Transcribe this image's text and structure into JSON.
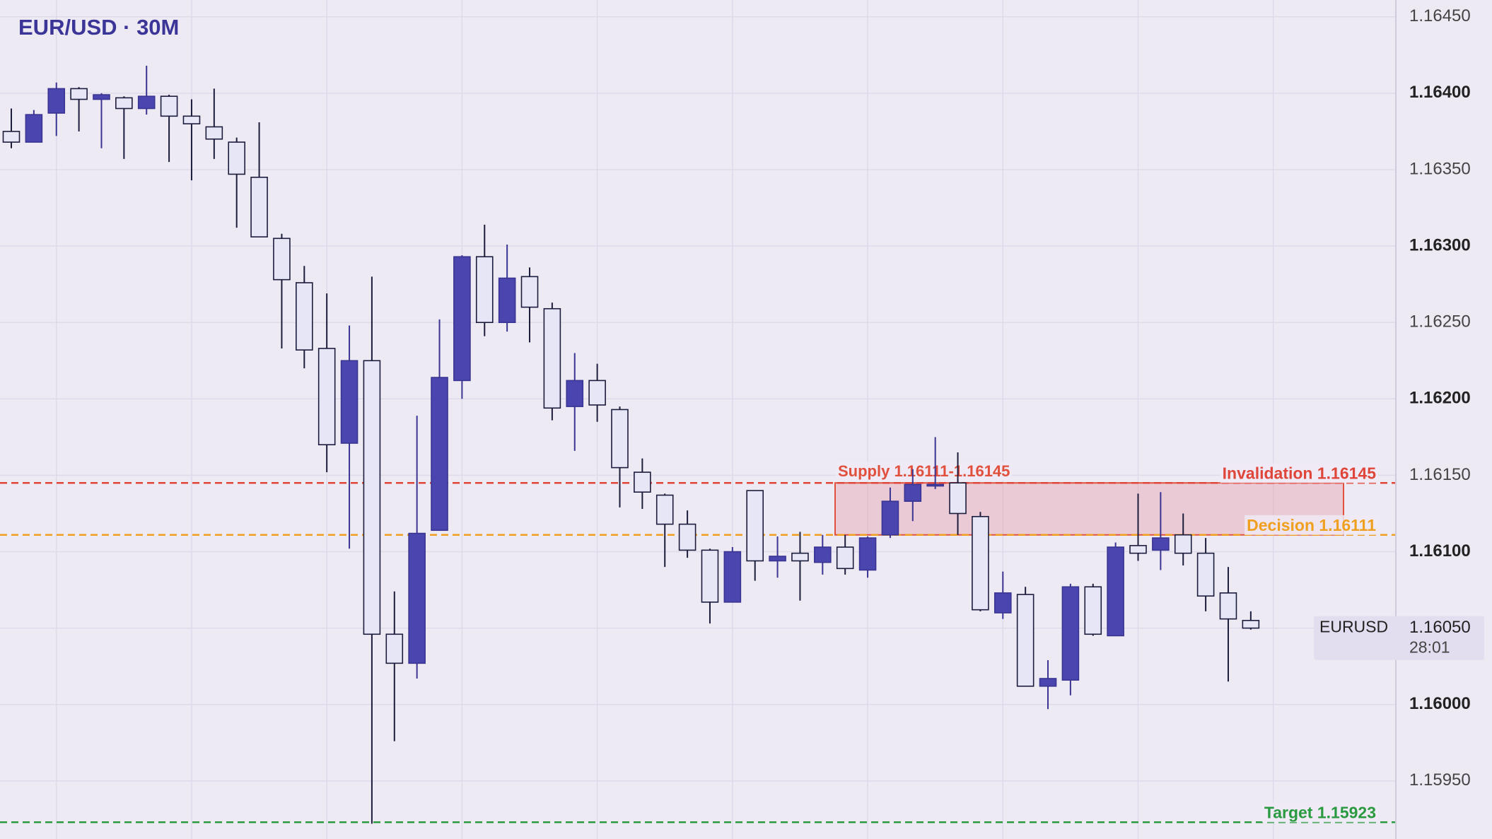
{
  "chart_data": {
    "type": "candlestick",
    "title": "EUR/USD · 30M",
    "series": [
      {
        "name": "EURUSD",
        "up_color": "#4b45b0",
        "down_color": "#e6e6f6",
        "open": [
          1.16375,
          1.16368,
          1.16387,
          1.16403,
          1.16396,
          1.16397,
          1.1639,
          1.16398,
          1.16385,
          1.16378,
          1.16368,
          1.16345,
          1.16305,
          1.16276,
          1.16233,
          1.16171,
          1.16225,
          1.16046,
          1.16027,
          1.16114,
          1.16212,
          1.16293,
          1.1625,
          1.1628,
          1.16259,
          1.16195,
          1.16212,
          1.16193,
          1.16152,
          1.16137,
          1.16118,
          1.16101,
          1.16067,
          1.1614,
          1.16094,
          1.16099,
          1.16093,
          1.16103,
          1.16088,
          1.16111,
          1.16133,
          1.16143,
          1.16145,
          1.16123,
          1.1606,
          1.16072,
          1.16012,
          1.16016,
          1.16077,
          1.16045,
          1.16104,
          1.16101,
          1.16111,
          1.16099,
          1.16073,
          1.16055
        ],
        "high": [
          1.1639,
          1.16389,
          1.16407,
          1.16404,
          1.164,
          1.16398,
          1.16418,
          1.16399,
          1.16396,
          1.16403,
          1.16371,
          1.16381,
          1.16308,
          1.16287,
          1.16269,
          1.16248,
          1.1628,
          1.16074,
          1.16189,
          1.16252,
          1.16294,
          1.16314,
          1.16301,
          1.16286,
          1.16263,
          1.1623,
          1.16223,
          1.16195,
          1.16161,
          1.16138,
          1.16127,
          1.16102,
          1.16103,
          1.1614,
          1.1611,
          1.16113,
          1.16111,
          1.16111,
          1.1611,
          1.16142,
          1.16154,
          1.16175,
          1.16165,
          1.16126,
          1.16087,
          1.16077,
          1.16029,
          1.16079,
          1.16079,
          1.16106,
          1.16138,
          1.16139,
          1.16125,
          1.16109,
          1.1609,
          1.16061
        ],
        "low": [
          1.16364,
          1.16368,
          1.16372,
          1.16375,
          1.16364,
          1.16357,
          1.16386,
          1.16355,
          1.16343,
          1.16357,
          1.16312,
          1.16306,
          1.16233,
          1.1622,
          1.16152,
          1.16102,
          1.15922,
          1.15976,
          1.16017,
          1.16114,
          1.162,
          1.16241,
          1.16244,
          1.16237,
          1.16186,
          1.16166,
          1.16185,
          1.16129,
          1.16128,
          1.1609,
          1.16096,
          1.16053,
          1.16067,
          1.16081,
          1.16083,
          1.16068,
          1.16085,
          1.16085,
          1.16083,
          1.16109,
          1.1612,
          1.16141,
          1.16111,
          1.16061,
          1.16056,
          1.16012,
          1.15997,
          1.16006,
          1.16045,
          1.16045,
          1.16094,
          1.16088,
          1.16091,
          1.16061,
          1.16015,
          1.16049
        ],
        "close": [
          1.16368,
          1.16386,
          1.16403,
          1.16396,
          1.16399,
          1.1639,
          1.16398,
          1.16385,
          1.1638,
          1.1637,
          1.16347,
          1.16306,
          1.16278,
          1.16232,
          1.1617,
          1.16225,
          1.16046,
          1.16027,
          1.16112,
          1.16214,
          1.16293,
          1.1625,
          1.16279,
          1.1626,
          1.16194,
          1.16212,
          1.16196,
          1.16155,
          1.16139,
          1.16118,
          1.16101,
          1.16067,
          1.161,
          1.16094,
          1.16097,
          1.16094,
          1.16103,
          1.16089,
          1.16109,
          1.16133,
          1.16144,
          1.16144,
          1.16125,
          1.16062,
          1.16073,
          1.16012,
          1.16017,
          1.16077,
          1.16046,
          1.16103,
          1.16099,
          1.16109,
          1.16099,
          1.16071,
          1.16056,
          1.1605
        ]
      }
    ],
    "ylim": [
      1.15912,
      1.16461
    ],
    "yticks": [
      {
        "value": 1.1595,
        "label": "1.15950"
      },
      {
        "value": 1.16,
        "label": "1.16000"
      },
      {
        "value": 1.1605,
        "label": "1.16050"
      },
      {
        "value": 1.161,
        "label": "1.16100"
      },
      {
        "value": 1.1615,
        "label": "1.16150"
      },
      {
        "value": 1.162,
        "label": "1.16200"
      },
      {
        "value": 1.1625,
        "label": "1.16250"
      },
      {
        "value": 1.163,
        "label": "1.16300"
      },
      {
        "value": 1.1635,
        "label": "1.16350"
      },
      {
        "value": 1.164,
        "label": "1.16400"
      },
      {
        "value": 1.1645,
        "label": "1.16450"
      }
    ],
    "grid": true,
    "zone": {
      "label": "Supply 1.16111-1.16145",
      "low": 1.16111,
      "high": 1.16145,
      "color": "#e0503c"
    },
    "levels": [
      {
        "label": "Invalidation  1.16145",
        "value": 1.16145,
        "color": "#e0453a"
      },
      {
        "label": "Decision  1.16111",
        "value": 1.16111,
        "color": "#f0a020"
      },
      {
        "label": "Target  1.15923",
        "value": 1.15923,
        "color": "#2a9a40"
      }
    ],
    "last_price": {
      "value": 1.1605,
      "label": "1.16050",
      "countdown": "28:01"
    }
  }
}
